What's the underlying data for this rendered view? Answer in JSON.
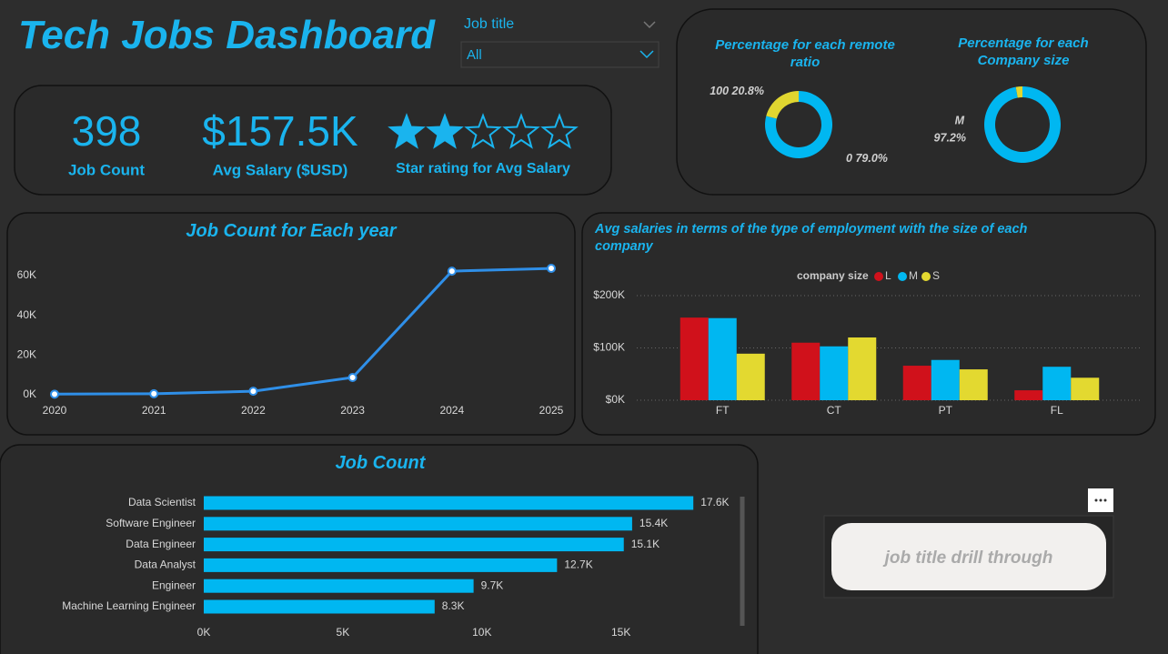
{
  "header": {
    "title": "Tech Jobs Dashboard"
  },
  "filter": {
    "label": "Job title",
    "value": "All"
  },
  "kpis": [
    {
      "value": "398",
      "label": "Job Count"
    },
    {
      "value": "$157.5K",
      "label": "Avg Salary ($USD)"
    }
  ],
  "star_rating": {
    "value": 2,
    "max": 5,
    "label": "Star rating for Avg Salary"
  },
  "button": {
    "label": "job title drill through"
  },
  "chart_data": [
    {
      "type": "donut",
      "title": "Percentage for each remote ratio",
      "categories": [
        "0",
        "100"
      ],
      "values": [
        79.0,
        20.8
      ],
      "value_labels": [
        "79.0%",
        "20.8%"
      ],
      "colors": [
        "#00b7f1",
        "#e0d630"
      ]
    },
    {
      "type": "donut",
      "title": "Percentage for each Company size",
      "categories": [
        "M",
        null
      ],
      "values": [
        97.2,
        2.8
      ],
      "value_labels": [
        "97.2%",
        null
      ],
      "colors": [
        "#00b7f1",
        "#e0d630"
      ]
    },
    {
      "type": "line",
      "title": "Job Count for Each year",
      "x": [
        2020,
        2021,
        2022,
        2023,
        2024,
        2025
      ],
      "values": [
        300,
        500,
        1800,
        8700,
        62200,
        63600
      ],
      "color": "#2f8fe8",
      "xlim": [
        2020,
        2025
      ],
      "xticks": [
        2020,
        2021,
        2022,
        2023,
        2024,
        2025
      ],
      "ylim": [
        0,
        65000
      ],
      "yticks": [
        {
          "value": 0,
          "label": "0K"
        },
        {
          "value": 20000,
          "label": "20K"
        },
        {
          "value": 40000,
          "label": "40K"
        },
        {
          "value": 60000,
          "label": "60K"
        }
      ],
      "grid": false
    },
    {
      "type": "grouped_bar",
      "title": "Avg salaries in terms of the type of employment with the size of each company",
      "legend_title": "company size",
      "categories": [
        "FT",
        "CT",
        "PT",
        "FL"
      ],
      "series": [
        {
          "name": "L",
          "color": "#d0111b",
          "values": [
            158000,
            110000,
            66000,
            19000
          ]
        },
        {
          "name": "M",
          "color": "#00b7f1",
          "values": [
            157000,
            103000,
            77000,
            64000
          ]
        },
        {
          "name": "S",
          "color": "#e3d930",
          "values": [
            89000,
            120000,
            59000,
            43000
          ]
        }
      ],
      "ylim": [
        0,
        200000
      ],
      "yticks": [
        {
          "value": 0,
          "label": "$0K"
        },
        {
          "value": 100000,
          "label": "$100K"
        },
        {
          "value": 200000,
          "label": "$200K"
        }
      ],
      "grid": true
    },
    {
      "type": "hbar",
      "title": "Job Count",
      "categories": [
        "Data Scientist",
        "Software Engineer",
        "Data Engineer",
        "Data Analyst",
        "Engineer",
        "Machine Learning Engineer"
      ],
      "values": [
        17600,
        15400,
        15100,
        12700,
        9700,
        8300
      ],
      "value_labels": [
        "17.6K",
        "15.4K",
        "15.1K",
        "12.7K",
        "9.7K",
        "8.3K"
      ],
      "color": "#00b7f1",
      "xlim": [
        0,
        19000
      ],
      "xticks": [
        {
          "value": 0,
          "label": "0K"
        },
        {
          "value": 5000,
          "label": "5K"
        },
        {
          "value": 10000,
          "label": "10K"
        },
        {
          "value": 15000,
          "label": "15K"
        }
      ]
    }
  ]
}
